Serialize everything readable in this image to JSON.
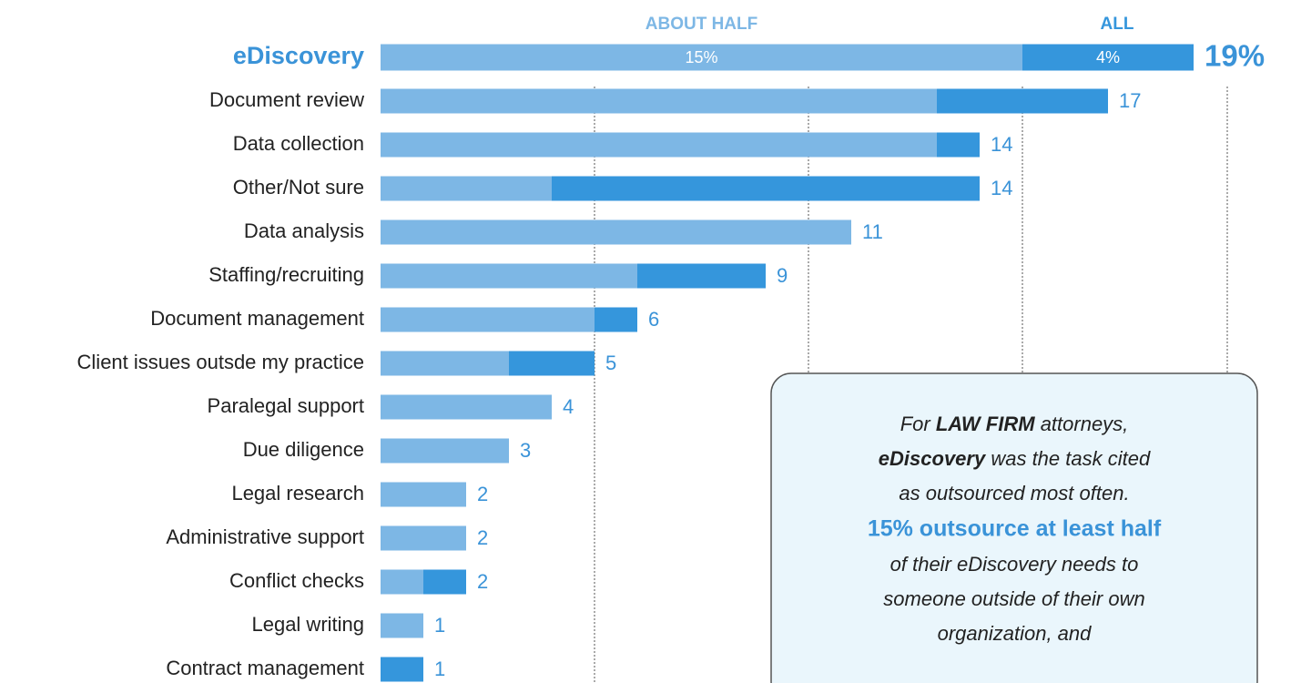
{
  "chart_data": {
    "type": "stacked-bar-horizontal",
    "categories": [
      "eDiscovery",
      "Document review",
      "Data collection",
      "Other/Not sure",
      "Data analysis",
      "Staffing/recruiting",
      "Document management",
      "Client issues outsde my practice",
      "Paralegal support",
      "Due diligence",
      "Legal research",
      "Administrative support",
      "Conflict checks",
      "Legal writing",
      "Contract management"
    ],
    "series": [
      {
        "name": "ABOUT HALF",
        "color": "#7db7e5",
        "values": [
          15,
          13,
          13,
          4,
          11,
          6,
          5,
          3,
          4,
          3,
          2,
          2,
          1,
          1,
          0
        ],
        "value_labels": [
          "15%",
          null,
          null,
          null,
          null,
          null,
          null,
          null,
          null,
          null,
          null,
          null,
          null,
          null,
          null
        ]
      },
      {
        "name": "ALL",
        "color": "#3596dc",
        "values": [
          4,
          4,
          1,
          10,
          0,
          3,
          1,
          2,
          0,
          0,
          0,
          0,
          1,
          0,
          1
        ],
        "value_labels": [
          "4%",
          null,
          null,
          null,
          null,
          null,
          null,
          null,
          null,
          null,
          null,
          null,
          null,
          null,
          null
        ]
      }
    ],
    "totals": [
      19,
      17,
      14,
      14,
      11,
      9,
      6,
      5,
      4,
      3,
      2,
      2,
      2,
      1,
      1
    ],
    "total_labels": [
      "19%",
      null,
      null,
      null,
      null,
      null,
      null,
      null,
      null,
      null,
      null,
      null,
      null,
      null,
      null
    ],
    "xlim": [
      0,
      20
    ],
    "xticks": [
      5,
      10,
      15,
      20
    ],
    "grid": true,
    "callout": {
      "line1": [
        "For ",
        "LAW FIRM",
        " attorneys,"
      ],
      "line2": [
        "eDiscovery",
        " was the task cited"
      ],
      "line3": "as outsourced most often.",
      "line4": "15% outsource at least half",
      "line5": "of their eDiscovery needs to",
      "line6": "someone outside of their own",
      "line7": "organization, and"
    }
  }
}
